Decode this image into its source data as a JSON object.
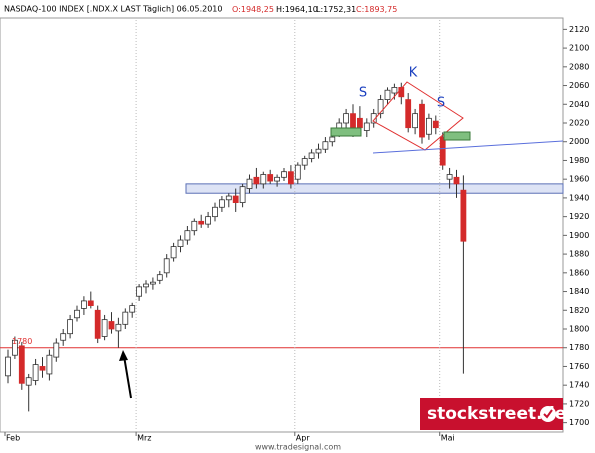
{
  "chart_data": {
    "type": "candlestick",
    "title": "NASDAQ-100 INDEX [.NDX.X LAST Täglich] 06.05.2010",
    "header_values": [
      "O:1948,25",
      "H:1964,10",
      "L:1752,31",
      "C:1893,75"
    ],
    "categories": [
      "Feb",
      null,
      null,
      null,
      null,
      null,
      null,
      null,
      null,
      null,
      null,
      null,
      null,
      null,
      null,
      null,
      null,
      null,
      null,
      "Mrz",
      null,
      null,
      null,
      null,
      null,
      null,
      null,
      null,
      null,
      null,
      null,
      null,
      null,
      null,
      null,
      null,
      null,
      null,
      null,
      null,
      null,
      null,
      "Apr",
      null,
      null,
      null,
      null,
      null,
      null,
      null,
      null,
      null,
      null,
      null,
      null,
      null,
      null,
      null,
      null,
      null,
      null,
      null,
      null,
      "Mai",
      null,
      null,
      null
    ],
    "open": [
      1750,
      1772,
      1782,
      1740,
      1745,
      1760,
      1752,
      1770,
      1788,
      1795,
      1812,
      1822,
      1830,
      1820,
      1792,
      1808,
      1798,
      1805,
      1818,
      1835,
      1845,
      1848,
      1852,
      1860,
      1876,
      1888,
      1895,
      1905,
      1915,
      1912,
      1920,
      1930,
      1938,
      1942,
      1935,
      1950,
      1962,
      1955,
      1965,
      1958,
      1962,
      1968,
      1960,
      1975,
      1982,
      1988,
      1992,
      2000,
      2010,
      2020,
      2030,
      2025,
      2012,
      2020,
      2030,
      2045,
      2052,
      2058,
      2045,
      2015,
      2040,
      2008,
      2022,
      2005,
      1960,
      1962,
      1948.25
    ],
    "high": [
      1778,
      1792,
      1786,
      1752,
      1768,
      1770,
      1778,
      1790,
      1800,
      1815,
      1825,
      1835,
      1840,
      1825,
      1815,
      1818,
      1812,
      1822,
      1828,
      1848,
      1852,
      1855,
      1862,
      1880,
      1892,
      1900,
      1910,
      1918,
      1922,
      1925,
      1935,
      1942,
      1945,
      1950,
      1955,
      1965,
      1972,
      1968,
      1970,
      1965,
      1972,
      1975,
      1978,
      1985,
      1992,
      1998,
      2005,
      2010,
      2025,
      2035,
      2040,
      2038,
      2025,
      2035,
      2050,
      2058,
      2062,
      2063,
      2052,
      2035,
      2045,
      2030,
      2028,
      2010,
      1972,
      1970,
      1964.1
    ],
    "low": [
      1742,
      1768,
      1735,
      1712,
      1740,
      1748,
      1745,
      1765,
      1782,
      1790,
      1808,
      1815,
      1822,
      1785,
      1788,
      1795,
      1780,
      1800,
      1812,
      1830,
      1838,
      1842,
      1848,
      1855,
      1872,
      1882,
      1890,
      1900,
      1908,
      1908,
      1915,
      1925,
      1930,
      1925,
      1930,
      1945,
      1950,
      1950,
      1955,
      1952,
      1958,
      1950,
      1955,
      1970,
      1978,
      1982,
      1988,
      1995,
      2005,
      2015,
      2005,
      2010,
      2005,
      2015,
      2025,
      2040,
      2045,
      2040,
      2010,
      2008,
      1998,
      2002,
      2008,
      1970,
      1950,
      1940,
      1752.31
    ],
    "close": [
      1770,
      1788,
      1742,
      1748,
      1762,
      1756,
      1772,
      1785,
      1795,
      1810,
      1820,
      1830,
      1825,
      1790,
      1810,
      1800,
      1805,
      1818,
      1825,
      1845,
      1848,
      1850,
      1858,
      1875,
      1888,
      1895,
      1905,
      1915,
      1912,
      1920,
      1930,
      1938,
      1942,
      1935,
      1952,
      1960,
      1955,
      1965,
      1958,
      1962,
      1968,
      1955,
      1975,
      1982,
      1988,
      1992,
      2000,
      2005,
      2020,
      2030,
      2012,
      2015,
      2020,
      2030,
      2045,
      2055,
      2058,
      2048,
      2015,
      2030,
      2005,
      2025,
      2015,
      1975,
      1965,
      1955,
      1893.75
    ],
    "up_color": "#ffffff",
    "down_color": "#d42a2a",
    "ylim": [
      1690,
      2130
    ],
    "yticks": [
      1700,
      1720,
      1740,
      1760,
      1780,
      1800,
      1820,
      1840,
      1860,
      1880,
      1900,
      1920,
      1940,
      1960,
      1980,
      2000,
      2020,
      2040,
      2060,
      2080,
      2100,
      2120
    ],
    "hline": 1780,
    "support_zone": [
      1945,
      1955
    ],
    "pattern_labels": [
      "S",
      "K",
      "S"
    ],
    "footer": "www.tradesignal.com",
    "brand": "stockstreet.de"
  }
}
